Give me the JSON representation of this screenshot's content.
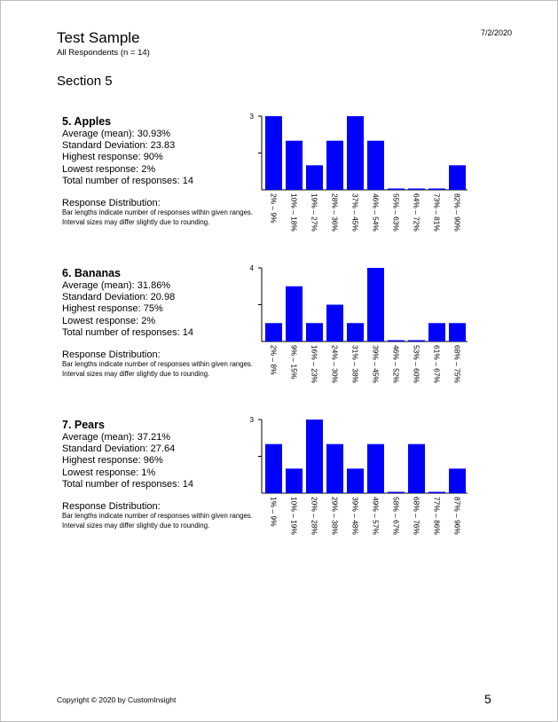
{
  "header": {
    "date": "7/2/2020",
    "title": "Test Sample",
    "subtitle": "All Respondents (n = 14)",
    "section": "Section 5"
  },
  "colors": {
    "bar": "#0000ff",
    "axis": "#000000"
  },
  "questions": [
    {
      "title": "5. Apples",
      "mean": "Average (mean): 30.93%",
      "sd": "Standard Deviation: 23.83",
      "high": "Highest response: 90%",
      "low": "Lowest response: 2%",
      "total": "Total number of responses: 14",
      "dist_title": "Response Distribution:",
      "dist_note": "Bar lengths indicate number of responses within given ranges. Interval sizes may differ slightly due to rounding."
    },
    {
      "title": "6. Bananas",
      "mean": "Average (mean): 31.86%",
      "sd": "Standard Deviation: 20.98",
      "high": "Highest response: 75%",
      "low": "Lowest response: 2%",
      "total": "Total number of responses: 14",
      "dist_title": "Response Distribution:",
      "dist_note": "Bar lengths indicate number of responses within given ranges. Interval sizes may differ slightly due to rounding."
    },
    {
      "title": "7. Pears",
      "mean": "Average (mean): 37.21%",
      "sd": "Standard Deviation: 27.64",
      "high": "Highest response: 96%",
      "low": "Lowest response: 1%",
      "total": "Total number of responses: 14",
      "dist_title": "Response Distribution:",
      "dist_note": "Bar lengths indicate number of responses within given ranges. Interval sizes may differ slightly due to rounding."
    }
  ],
  "chart_data": [
    {
      "type": "bar",
      "categories": [
        "2% – 9%",
        "10% – 18%",
        "19% – 27%",
        "28% – 36%",
        "37% – 45%",
        "46% – 54%",
        "55% – 63%",
        "64% – 72%",
        "73% – 81%",
        "82% – 90%"
      ],
      "values": [
        3,
        2,
        1,
        2,
        3,
        2,
        0,
        0,
        0,
        1
      ],
      "ylim": [
        0,
        3
      ],
      "ytick_label": "3"
    },
    {
      "type": "bar",
      "categories": [
        "2% – 8%",
        "9% – 15%",
        "16% – 23%",
        "24% – 30%",
        "31% – 38%",
        "39% – 45%",
        "46% – 52%",
        "53% – 60%",
        "61% – 67%",
        "68% – 75%"
      ],
      "values": [
        1,
        3,
        1,
        2,
        1,
        4,
        0,
        0,
        1,
        1
      ],
      "ylim": [
        0,
        4
      ],
      "ytick_label": "4"
    },
    {
      "type": "bar",
      "categories": [
        "1% – 9%",
        "10% – 19%",
        "20% – 28%",
        "29% – 38%",
        "39% – 48%",
        "49% – 57%",
        "58% – 67%",
        "68% – 76%",
        "77% – 86%",
        "87% – 96%"
      ],
      "values": [
        2,
        1,
        3,
        2,
        1,
        2,
        0,
        2,
        0,
        1
      ],
      "ylim": [
        0,
        3
      ],
      "ytick_label": "3"
    }
  ],
  "footer": {
    "copyright": "Copyright © 2020 by CustomInsight",
    "page_number": "5"
  }
}
